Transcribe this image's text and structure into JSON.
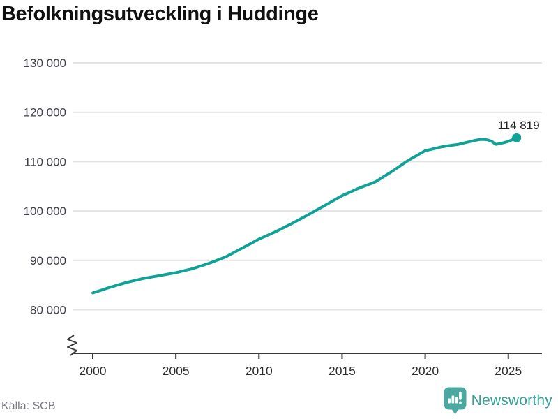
{
  "header": {
    "title": "Befolkningsutveckling i Huddinge"
  },
  "footer": {
    "source": "Källa: SCB",
    "brand": "Newsworthy"
  },
  "colors": {
    "line": "#10a296",
    "grid": "#e3e3e3",
    "axis": "#3a3a3a",
    "y_label": "#41414a",
    "x_label": "#2d2d2d",
    "end_label": "#202020",
    "brand_text": "#35a099",
    "brand_icon": "#4aa8a1"
  },
  "chart_data": {
    "type": "line",
    "title": "Befolkningsutveckling i Huddinge",
    "xlabel": "",
    "ylabel": "",
    "ylim": [
      80000,
      130000
    ],
    "axis_break": true,
    "grid": "horizontal",
    "legend": "none",
    "x_start": 2000,
    "x_step": 0.25,
    "x_ticks": [
      2000,
      2005,
      2010,
      2015,
      2020,
      2025
    ],
    "y_ticks": [
      {
        "value": 80000,
        "label": "80 000"
      },
      {
        "value": 90000,
        "label": "90 000"
      },
      {
        "value": 100000,
        "label": "100 000"
      },
      {
        "value": 110000,
        "label": "110 000"
      },
      {
        "value": 120000,
        "label": "120 000"
      },
      {
        "value": 130000,
        "label": "130 000"
      }
    ],
    "end_value": 114819,
    "end_label": "114 819",
    "source": "Källa: SCB",
    "series": [
      {
        "name": "Befolkning i Huddinge",
        "color": "#10a296",
        "values": [
          83400,
          83675,
          83950,
          84225,
          84500,
          84750,
          85000,
          85250,
          85500,
          85700,
          85900,
          86100,
          86300,
          86450,
          86600,
          86750,
          86900,
          87050,
          87200,
          87350,
          87500,
          87700,
          87900,
          88100,
          88300,
          88575,
          88850,
          89125,
          89400,
          89725,
          90050,
          90375,
          90700,
          91150,
          91600,
          92050,
          92500,
          92950,
          93400,
          93850,
          94300,
          94675,
          95050,
          95425,
          95800,
          96225,
          96650,
          97075,
          97500,
          97950,
          98400,
          98850,
          99300,
          99775,
          100250,
          100725,
          101200,
          101675,
          102150,
          102625,
          103100,
          103475,
          103850,
          104225,
          104600,
          104925,
          105250,
          105575,
          105900,
          106425,
          106950,
          107475,
          108000,
          108575,
          109150,
          109725,
          110300,
          110775,
          111250,
          111725,
          112200,
          112400,
          112600,
          112800,
          113000,
          113125,
          113250,
          113375,
          113500,
          113700,
          113900,
          114100,
          114300,
          114450,
          114500,
          114400,
          114100,
          113500,
          113650,
          113850,
          114100,
          114450,
          114819
        ]
      }
    ]
  }
}
